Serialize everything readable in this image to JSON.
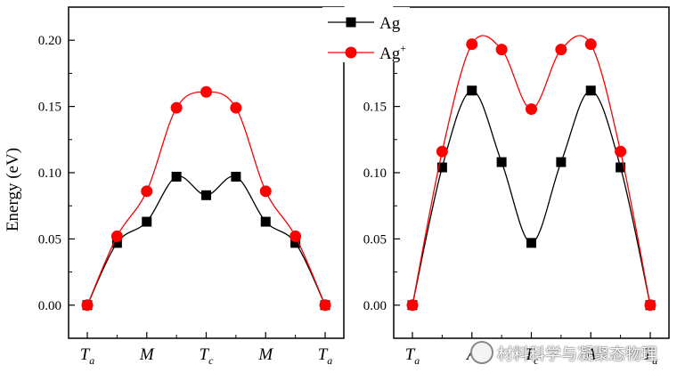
{
  "chart_data": [
    {
      "type": "line",
      "ylabel": "Energy (eV)",
      "xlabel": "",
      "ylim": [
        -0.025,
        0.225
      ],
      "yticks": [
        "0.00",
        "0.05",
        "0.10",
        "0.15",
        "0.20"
      ],
      "x_tick_labels": [
        {
          "main": "T",
          "sub": "a"
        },
        {
          "main": "M",
          "sub": ""
        },
        {
          "main": "T",
          "sub": "c"
        },
        {
          "main": "M",
          "sub": ""
        },
        {
          "main": "T",
          "sub": "a"
        }
      ],
      "x": [
        0,
        1,
        2,
        3,
        4,
        5,
        6,
        7,
        8
      ],
      "series": [
        {
          "name": "Ag",
          "color": "#000000",
          "marker": "square",
          "values": [
            0.0,
            0.047,
            0.063,
            0.097,
            0.083,
            0.097,
            0.063,
            0.047,
            0.0
          ]
        },
        {
          "name": "Ag+",
          "color": "#ff0000",
          "marker": "circle",
          "values": [
            0.0,
            0.052,
            0.086,
            0.149,
            0.161,
            0.149,
            0.086,
            0.052,
            0.0
          ]
        }
      ]
    },
    {
      "type": "line",
      "ylim": [
        -0.025,
        0.225
      ],
      "yticks": [
        "0.00",
        "0.05",
        "0.10",
        "0.15"
      ],
      "x_tick_labels": [
        {
          "main": "T",
          "sub": "a"
        },
        {
          "main": "A",
          "sub": ""
        },
        {
          "main": "T",
          "sub": "c"
        },
        {
          "main": "A",
          "sub": ""
        },
        {
          "main": "T",
          "sub": "a"
        }
      ],
      "x": [
        0,
        1,
        2,
        3,
        4,
        5,
        6,
        7,
        8
      ],
      "series": [
        {
          "name": "Ag",
          "color": "#000000",
          "marker": "square",
          "values": [
            0.0,
            0.104,
            0.162,
            0.108,
            0.047,
            0.108,
            0.162,
            0.104,
            0.0
          ]
        },
        {
          "name": "Ag+",
          "color": "#ff0000",
          "marker": "circle",
          "values": [
            0.0,
            0.116,
            0.197,
            0.193,
            0.148,
            0.193,
            0.197,
            0.116,
            0.0
          ]
        }
      ]
    }
  ],
  "legend": {
    "items": [
      {
        "label": "Ag",
        "sup": "",
        "color": "#000000",
        "marker": "square"
      },
      {
        "label": "Ag",
        "sup": "+",
        "color": "#ff0000",
        "marker": "circle"
      }
    ]
  },
  "watermark": {
    "text": "材料科学与凝聚态物理"
  }
}
